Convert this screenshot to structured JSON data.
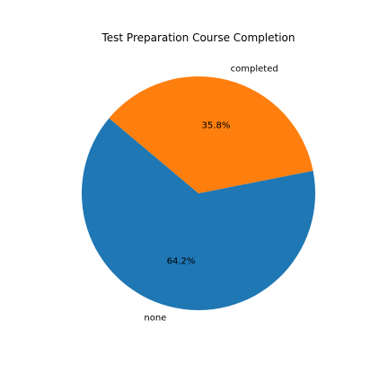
{
  "chart_data": {
    "type": "pie",
    "title": "Test Preparation Course Completion",
    "slices": [
      {
        "label": "none",
        "value": 64.2,
        "pct_label": "64.2%",
        "color": "#1f77b4"
      },
      {
        "label": "completed",
        "value": 35.8,
        "pct_label": "35.8%",
        "color": "#ff7f0e"
      }
    ],
    "start_angle_deg": 140,
    "counterclockwise": true
  }
}
